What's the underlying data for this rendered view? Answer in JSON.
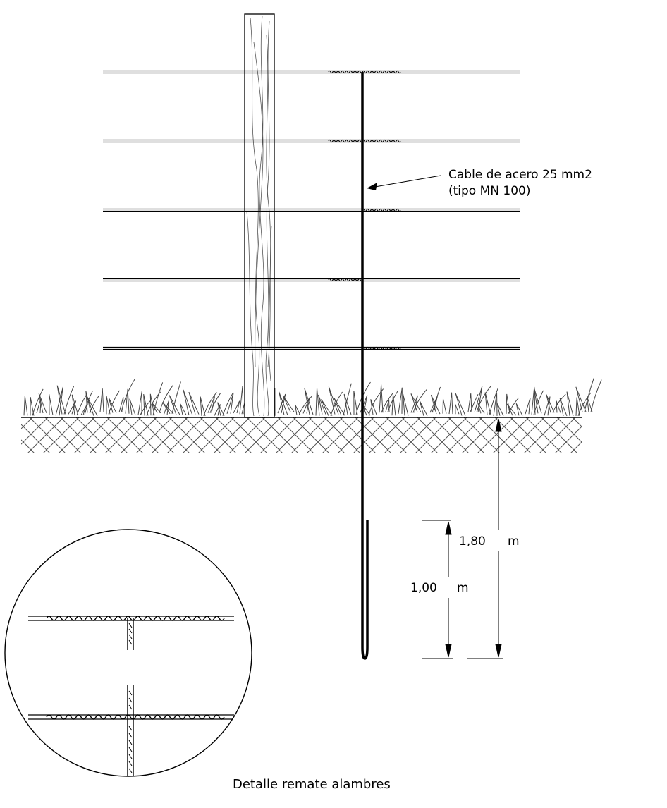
{
  "labels": {
    "cable_line1": "Cable de acero 25 mm2",
    "cable_line2": "(tipo MN 100)",
    "dim_total": "1,80",
    "dim_total_unit": "m",
    "dim_buried": "1,00",
    "dim_buried_unit": "m",
    "detail_caption": "Detalle remate alambres"
  },
  "wires": {
    "count": 5
  },
  "colors": {
    "ink": "#000000",
    "paper": "#ffffff"
  }
}
